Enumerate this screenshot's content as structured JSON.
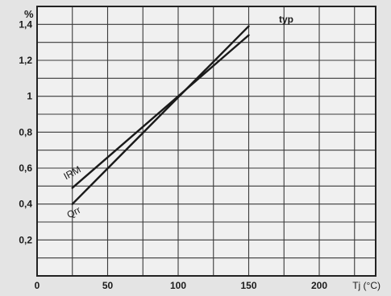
{
  "chart_data": {
    "type": "line",
    "title": "",
    "ylabel": "%",
    "xlabel": "Tj (°C)",
    "annotation": "typ",
    "xlim": [
      0,
      240
    ],
    "ylim": [
      0,
      1.5
    ],
    "x_ticks": [
      0,
      50,
      100,
      150,
      200
    ],
    "x_tick_labels": [
      "0",
      "50",
      "100",
      "150",
      "200"
    ],
    "y_ticks": [
      0.2,
      0.4,
      0.6,
      0.8,
      1.0,
      1.2,
      1.4
    ],
    "y_tick_labels": [
      "0,2",
      "0,4",
      "0,6",
      "0,8",
      "1",
      "1,2",
      "1,4"
    ],
    "grid": true,
    "series": [
      {
        "name": "IRM",
        "x": [
          25,
          150
        ],
        "y": [
          0.49,
          1.34
        ]
      },
      {
        "name": "Qrr",
        "x": [
          25,
          150
        ],
        "y": [
          0.4,
          1.39
        ]
      }
    ]
  }
}
